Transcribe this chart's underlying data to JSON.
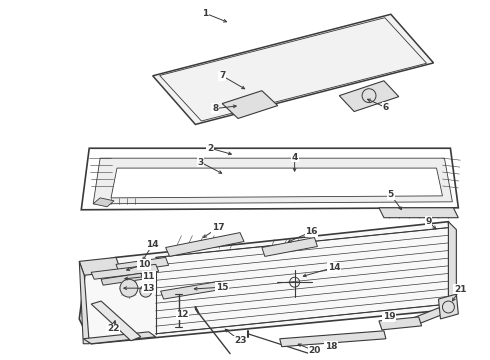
{
  "bg_color": "#ffffff",
  "line_color": "#3a3a3a",
  "fig_width": 4.9,
  "fig_height": 3.6,
  "dpi": 100
}
